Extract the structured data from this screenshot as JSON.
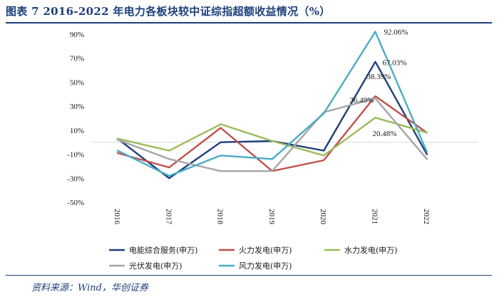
{
  "header": {
    "title": "图表 7   2016-2022 年电力各板块较中证综指超额收益情况（%）"
  },
  "footer": {
    "source": "资料来源：Wind，华创证券"
  },
  "chart_data": {
    "type": "line",
    "title": "2016-2022 年电力各板块较中证综指超额收益情况（%）",
    "xlabel": "",
    "ylabel": "",
    "ylim": [
      -50,
      90
    ],
    "yticks": [
      90,
      70,
      50,
      30,
      10,
      -10,
      -30,
      -50
    ],
    "ytick_labels": [
      "90%",
      "70%",
      "50%",
      "30%",
      "10%",
      "-10%",
      "-30%",
      "-50%"
    ],
    "categories": [
      "2016",
      "2017",
      "2018",
      "2019",
      "2020",
      "2021",
      "2022"
    ],
    "series": [
      {
        "name": "电能综合服务(申万)",
        "color": "#1f3f7a",
        "values": [
          3,
          -30,
          0,
          1,
          -7,
          67.03,
          -10
        ]
      },
      {
        "name": "火力发电(申万)",
        "color": "#c0504d",
        "values": [
          -9,
          -21,
          12,
          -24,
          -15,
          38.39,
          8
        ]
      },
      {
        "name": "水力发电(申万)",
        "color": "#9bbb59",
        "values": [
          3,
          -7,
          15,
          1,
          -11,
          20.48,
          8
        ]
      },
      {
        "name": "光伏发电(申万)",
        "color": "#a6a6a6",
        "values": [
          2,
          -14,
          -24,
          -24,
          25,
          36.49,
          -14
        ]
      },
      {
        "name": "风力发电(申万)",
        "color": "#4bacc6",
        "values": [
          -7,
          -28,
          -11,
          -14,
          24,
          92.06,
          -8
        ]
      }
    ],
    "annotations": [
      {
        "text": "92.06%",
        "series": "风力发电(申万)",
        "year": "2021",
        "value": 92.06
      },
      {
        "text": "67.03%",
        "series": "电能综合服务(申万)",
        "year": "2021",
        "value": 67.03
      },
      {
        "text": "38.39%",
        "series": "火力发电(申万)",
        "year": "2021",
        "value": 38.39
      },
      {
        "text": "36.49%",
        "series": "光伏发电(申万)",
        "year": "2021",
        "value": 36.49
      },
      {
        "text": "20.48%",
        "series": "水力发电(申万)",
        "year": "2021",
        "value": 20.48
      }
    ],
    "legend": "bottom"
  }
}
